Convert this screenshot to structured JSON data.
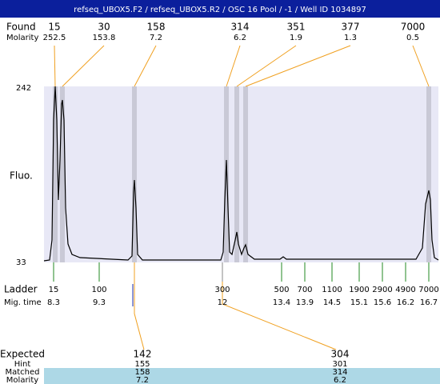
{
  "header": {
    "title": "refseq_UBOX5.F2 / refseq_UBOX5.R2 / OSC 16 Pool / -1 / Well ID 1034897"
  },
  "found": {
    "label": "Found",
    "molarity_label": "Molarity",
    "peaks": [
      {
        "size": 15,
        "molarity": 252.5
      },
      {
        "size": 30,
        "molarity": 153.8
      },
      {
        "size": 158,
        "molarity": 7.2
      },
      {
        "size": 314,
        "molarity": 6.2
      },
      {
        "size": 351,
        "molarity": 1.9
      },
      {
        "size": 377,
        "molarity": 1.3
      },
      {
        "size": 7000,
        "molarity": 0.5
      }
    ]
  },
  "y_axis": {
    "label": "Fluo.",
    "top": 242,
    "bottom": 33
  },
  "ladder": {
    "label": "Ladder",
    "mig_label": "Mig. time",
    "markers": [
      {
        "size": 15,
        "time": 8.3
      },
      {
        "size": 100,
        "time": 9.3
      },
      {
        "size": 300,
        "time": 12
      },
      {
        "size": 500,
        "time": 13.4
      },
      {
        "size": 700,
        "time": 13.9
      },
      {
        "size": 1100,
        "time": 14.5
      },
      {
        "size": 1900,
        "time": 15.1
      },
      {
        "size": 2900,
        "time": 15.6
      },
      {
        "size": 4900,
        "time": 16.2
      },
      {
        "size": 7000,
        "time": 16.7
      }
    ]
  },
  "expected": {
    "label": "Expected",
    "hint_label": "Hint",
    "matched_label": "Matched",
    "molarity_label": "Molarity",
    "items": [
      {
        "expected": 142,
        "hint": 155,
        "matched": 158,
        "molarity": 7.2
      },
      {
        "expected": 304,
        "hint": 301,
        "matched": 314,
        "molarity": 6.2
      }
    ]
  }
}
